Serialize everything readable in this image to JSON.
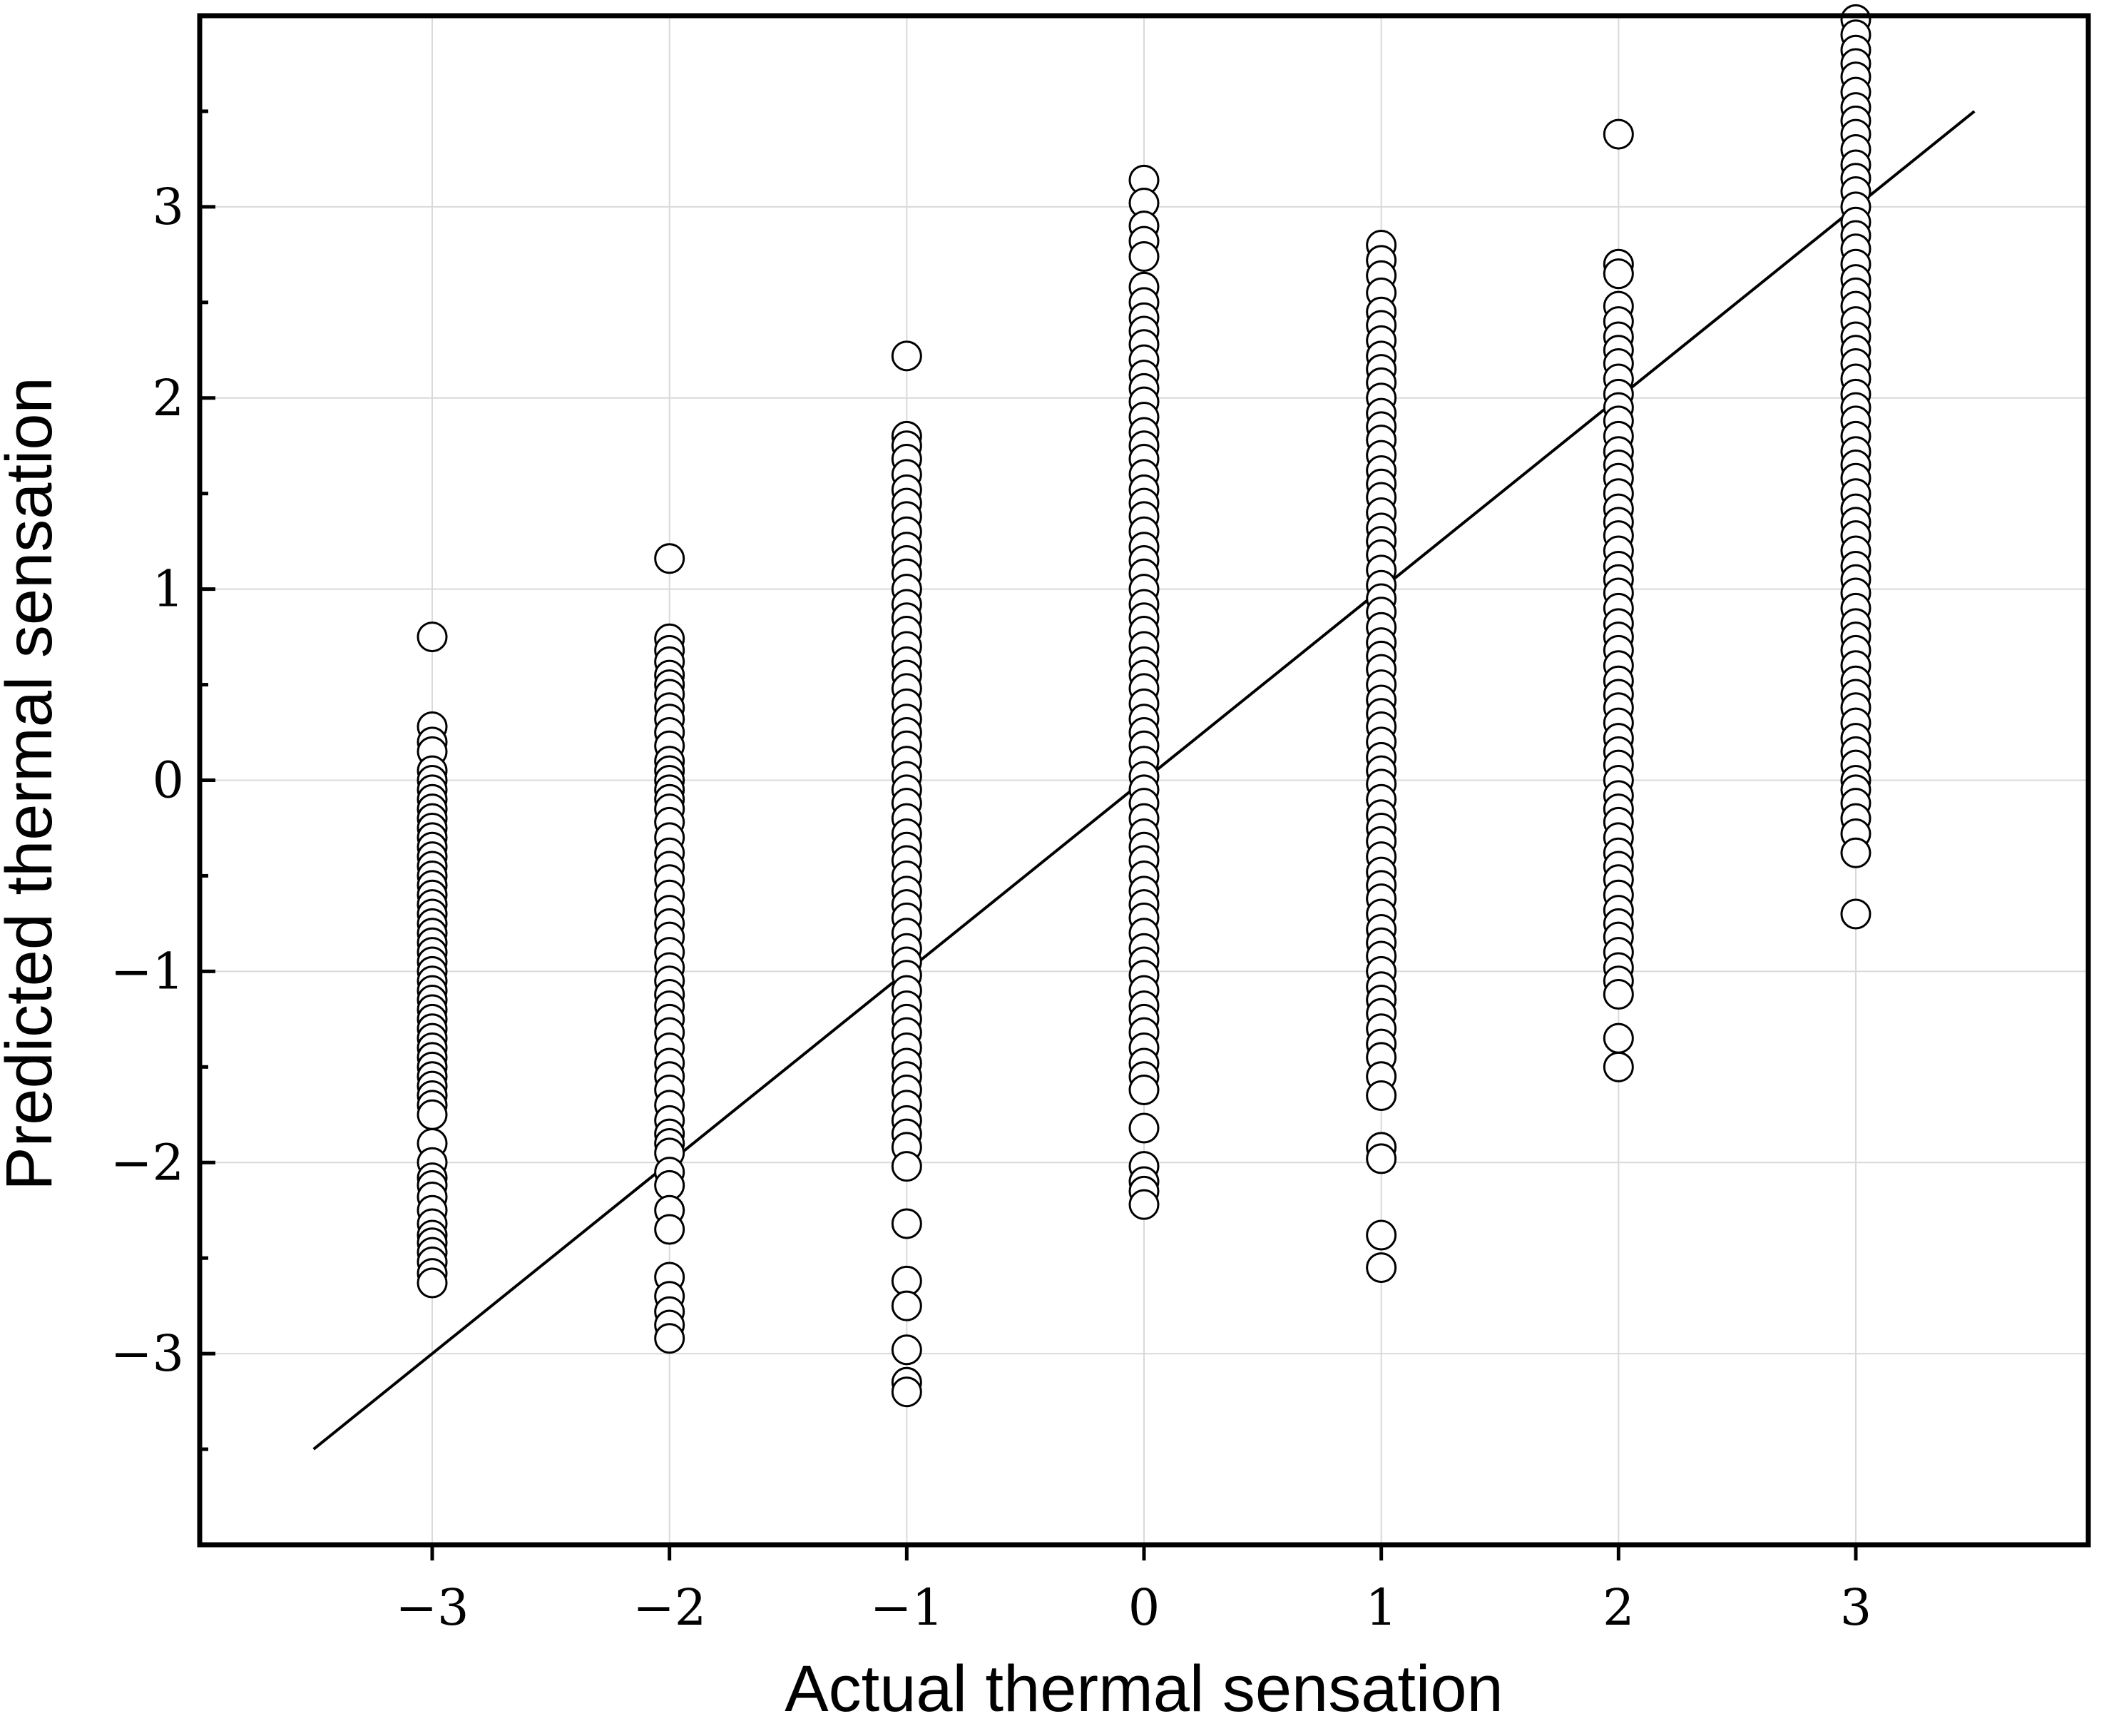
{
  "chart_data": {
    "type": "scatter",
    "title": "",
    "xlabel": "Actual thermal sensation",
    "ylabel": "Predicted thermal sensation",
    "xlim": [
      -3.98,
      3.98
    ],
    "ylim": [
      -4.0,
      4.0
    ],
    "x_ticks": [
      -3,
      -2,
      -1,
      0,
      1,
      2,
      3
    ],
    "y_ticks": [
      -3,
      -2,
      -1,
      0,
      1,
      2,
      3
    ],
    "x_tick_labels": [
      "−3",
      "−2",
      "−1",
      "0",
      "1",
      "2",
      "3"
    ],
    "y_tick_labels": [
      "−3",
      "−2",
      "−1",
      "0",
      "1",
      "2",
      "3"
    ],
    "y_minor_step": 0.5,
    "grid": true,
    "marker": "open-circle",
    "reference_line": {
      "x": [
        -3.5,
        3.5
      ],
      "y": [
        -3.5,
        3.5
      ]
    },
    "series": [
      {
        "x": -3,
        "y": [
          0.75,
          0.28,
          0.2,
          0.15,
          0.05,
          0.0,
          -0.05,
          -0.1,
          -0.15,
          -0.2,
          -0.25,
          -0.3,
          -0.35,
          -0.4,
          -0.45,
          -0.5,
          -0.55,
          -0.6,
          -0.65,
          -0.7,
          -0.75,
          -0.8,
          -0.85,
          -0.9,
          -0.95,
          -1.0,
          -1.05,
          -1.1,
          -1.15,
          -1.2,
          -1.25,
          -1.3,
          -1.35,
          -1.4,
          -1.45,
          -1.5,
          -1.55,
          -1.6,
          -1.65,
          -1.7,
          -1.75,
          -1.9,
          -2.0,
          -2.08,
          -2.12,
          -2.18,
          -2.25,
          -2.32,
          -2.38,
          -2.42,
          -2.47,
          -2.52,
          -2.58,
          -2.63
        ]
      },
      {
        "x": -2,
        "y": [
          1.16,
          0.74,
          0.68,
          0.62,
          0.55,
          0.5,
          0.45,
          0.38,
          0.32,
          0.25,
          0.18,
          0.1,
          0.05,
          0.0,
          -0.05,
          -0.1,
          -0.15,
          -0.22,
          -0.3,
          -0.38,
          -0.45,
          -0.52,
          -0.6,
          -0.68,
          -0.75,
          -0.82,
          -0.9,
          -0.98,
          -1.05,
          -1.12,
          -1.18,
          -1.25,
          -1.32,
          -1.4,
          -1.48,
          -1.55,
          -1.62,
          -1.7,
          -1.78,
          -1.85,
          -1.9,
          -1.95,
          -2.05,
          -2.12,
          -2.25,
          -2.35,
          -2.6,
          -2.7,
          -2.78,
          -2.85,
          -2.92
        ]
      },
      {
        "x": -1,
        "y": [
          2.22,
          1.8,
          1.75,
          1.68,
          1.6,
          1.52,
          1.45,
          1.38,
          1.3,
          1.22,
          1.15,
          1.08,
          1.0,
          0.92,
          0.85,
          0.78,
          0.7,
          0.62,
          0.55,
          0.48,
          0.4,
          0.32,
          0.25,
          0.18,
          0.1,
          0.02,
          -0.05,
          -0.12,
          -0.2,
          -0.28,
          -0.35,
          -0.42,
          -0.5,
          -0.58,
          -0.65,
          -0.72,
          -0.8,
          -0.88,
          -0.95,
          -1.02,
          -1.1,
          -1.18,
          -1.25,
          -1.32,
          -1.4,
          -1.48,
          -1.55,
          -1.62,
          -1.7,
          -1.78,
          -1.85,
          -1.92,
          -2.02,
          -2.32,
          -2.62,
          -2.75,
          -2.98,
          -3.15,
          -3.2
        ]
      },
      {
        "x": 0,
        "y": [
          3.14,
          3.02,
          2.9,
          2.82,
          2.74,
          2.58,
          2.5,
          2.42,
          2.35,
          2.28,
          2.2,
          2.12,
          2.05,
          1.98,
          1.9,
          1.82,
          1.75,
          1.68,
          1.6,
          1.52,
          1.45,
          1.38,
          1.3,
          1.22,
          1.15,
          1.08,
          1.0,
          0.92,
          0.85,
          0.78,
          0.7,
          0.62,
          0.55,
          0.48,
          0.4,
          0.32,
          0.25,
          0.18,
          0.1,
          0.02,
          -0.05,
          -0.12,
          -0.2,
          -0.28,
          -0.35,
          -0.42,
          -0.5,
          -0.58,
          -0.65,
          -0.72,
          -0.8,
          -0.88,
          -0.95,
          -1.02,
          -1.1,
          -1.18,
          -1.25,
          -1.32,
          -1.4,
          -1.48,
          -1.55,
          -1.62,
          -1.82,
          -2.02,
          -2.1,
          -2.15,
          -2.22
        ]
      },
      {
        "x": 1,
        "y": [
          2.8,
          2.72,
          2.64,
          2.55,
          2.45,
          2.38,
          2.3,
          2.22,
          2.15,
          2.08,
          2.0,
          1.92,
          1.85,
          1.78,
          1.7,
          1.62,
          1.55,
          1.48,
          1.4,
          1.32,
          1.25,
          1.18,
          1.1,
          1.02,
          0.95,
          0.88,
          0.8,
          0.72,
          0.65,
          0.58,
          0.5,
          0.42,
          0.35,
          0.28,
          0.2,
          0.12,
          0.05,
          -0.02,
          -0.1,
          -0.18,
          -0.25,
          -0.32,
          -0.4,
          -0.48,
          -0.55,
          -0.62,
          -0.7,
          -0.78,
          -0.85,
          -0.92,
          -1.0,
          -1.08,
          -1.15,
          -1.22,
          -1.3,
          -1.38,
          -1.45,
          -1.55,
          -1.65,
          -1.92,
          -1.98,
          -2.38,
          -2.55
        ]
      },
      {
        "x": 2,
        "y": [
          3.38,
          2.7,
          2.65,
          2.48,
          2.4,
          2.32,
          2.25,
          2.18,
          2.1,
          2.02,
          1.95,
          1.88,
          1.8,
          1.72,
          1.65,
          1.58,
          1.5,
          1.42,
          1.35,
          1.28,
          1.2,
          1.12,
          1.05,
          0.98,
          0.9,
          0.82,
          0.75,
          0.68,
          0.6,
          0.52,
          0.45,
          0.38,
          0.3,
          0.22,
          0.15,
          0.08,
          0.0,
          -0.08,
          -0.15,
          -0.22,
          -0.3,
          -0.38,
          -0.45,
          -0.52,
          -0.6,
          -0.68,
          -0.75,
          -0.82,
          -0.9,
          -0.98,
          -1.05,
          -1.12,
          -1.35,
          -1.5
        ]
      },
      {
        "x": 3,
        "y": [
          3.98,
          3.9,
          3.82,
          3.75,
          3.68,
          3.6,
          3.52,
          3.45,
          3.38,
          3.3,
          3.22,
          3.15,
          3.08,
          3.0,
          2.92,
          2.85,
          2.78,
          2.7,
          2.62,
          2.55,
          2.48,
          2.4,
          2.32,
          2.25,
          2.18,
          2.1,
          2.02,
          1.95,
          1.88,
          1.8,
          1.72,
          1.65,
          1.58,
          1.5,
          1.42,
          1.35,
          1.28,
          1.2,
          1.12,
          1.05,
          0.98,
          0.9,
          0.82,
          0.75,
          0.68,
          0.6,
          0.52,
          0.45,
          0.38,
          0.3,
          0.22,
          0.15,
          0.08,
          0.0,
          -0.05,
          -0.12,
          -0.2,
          -0.28,
          -0.38,
          -0.7
        ]
      }
    ]
  }
}
